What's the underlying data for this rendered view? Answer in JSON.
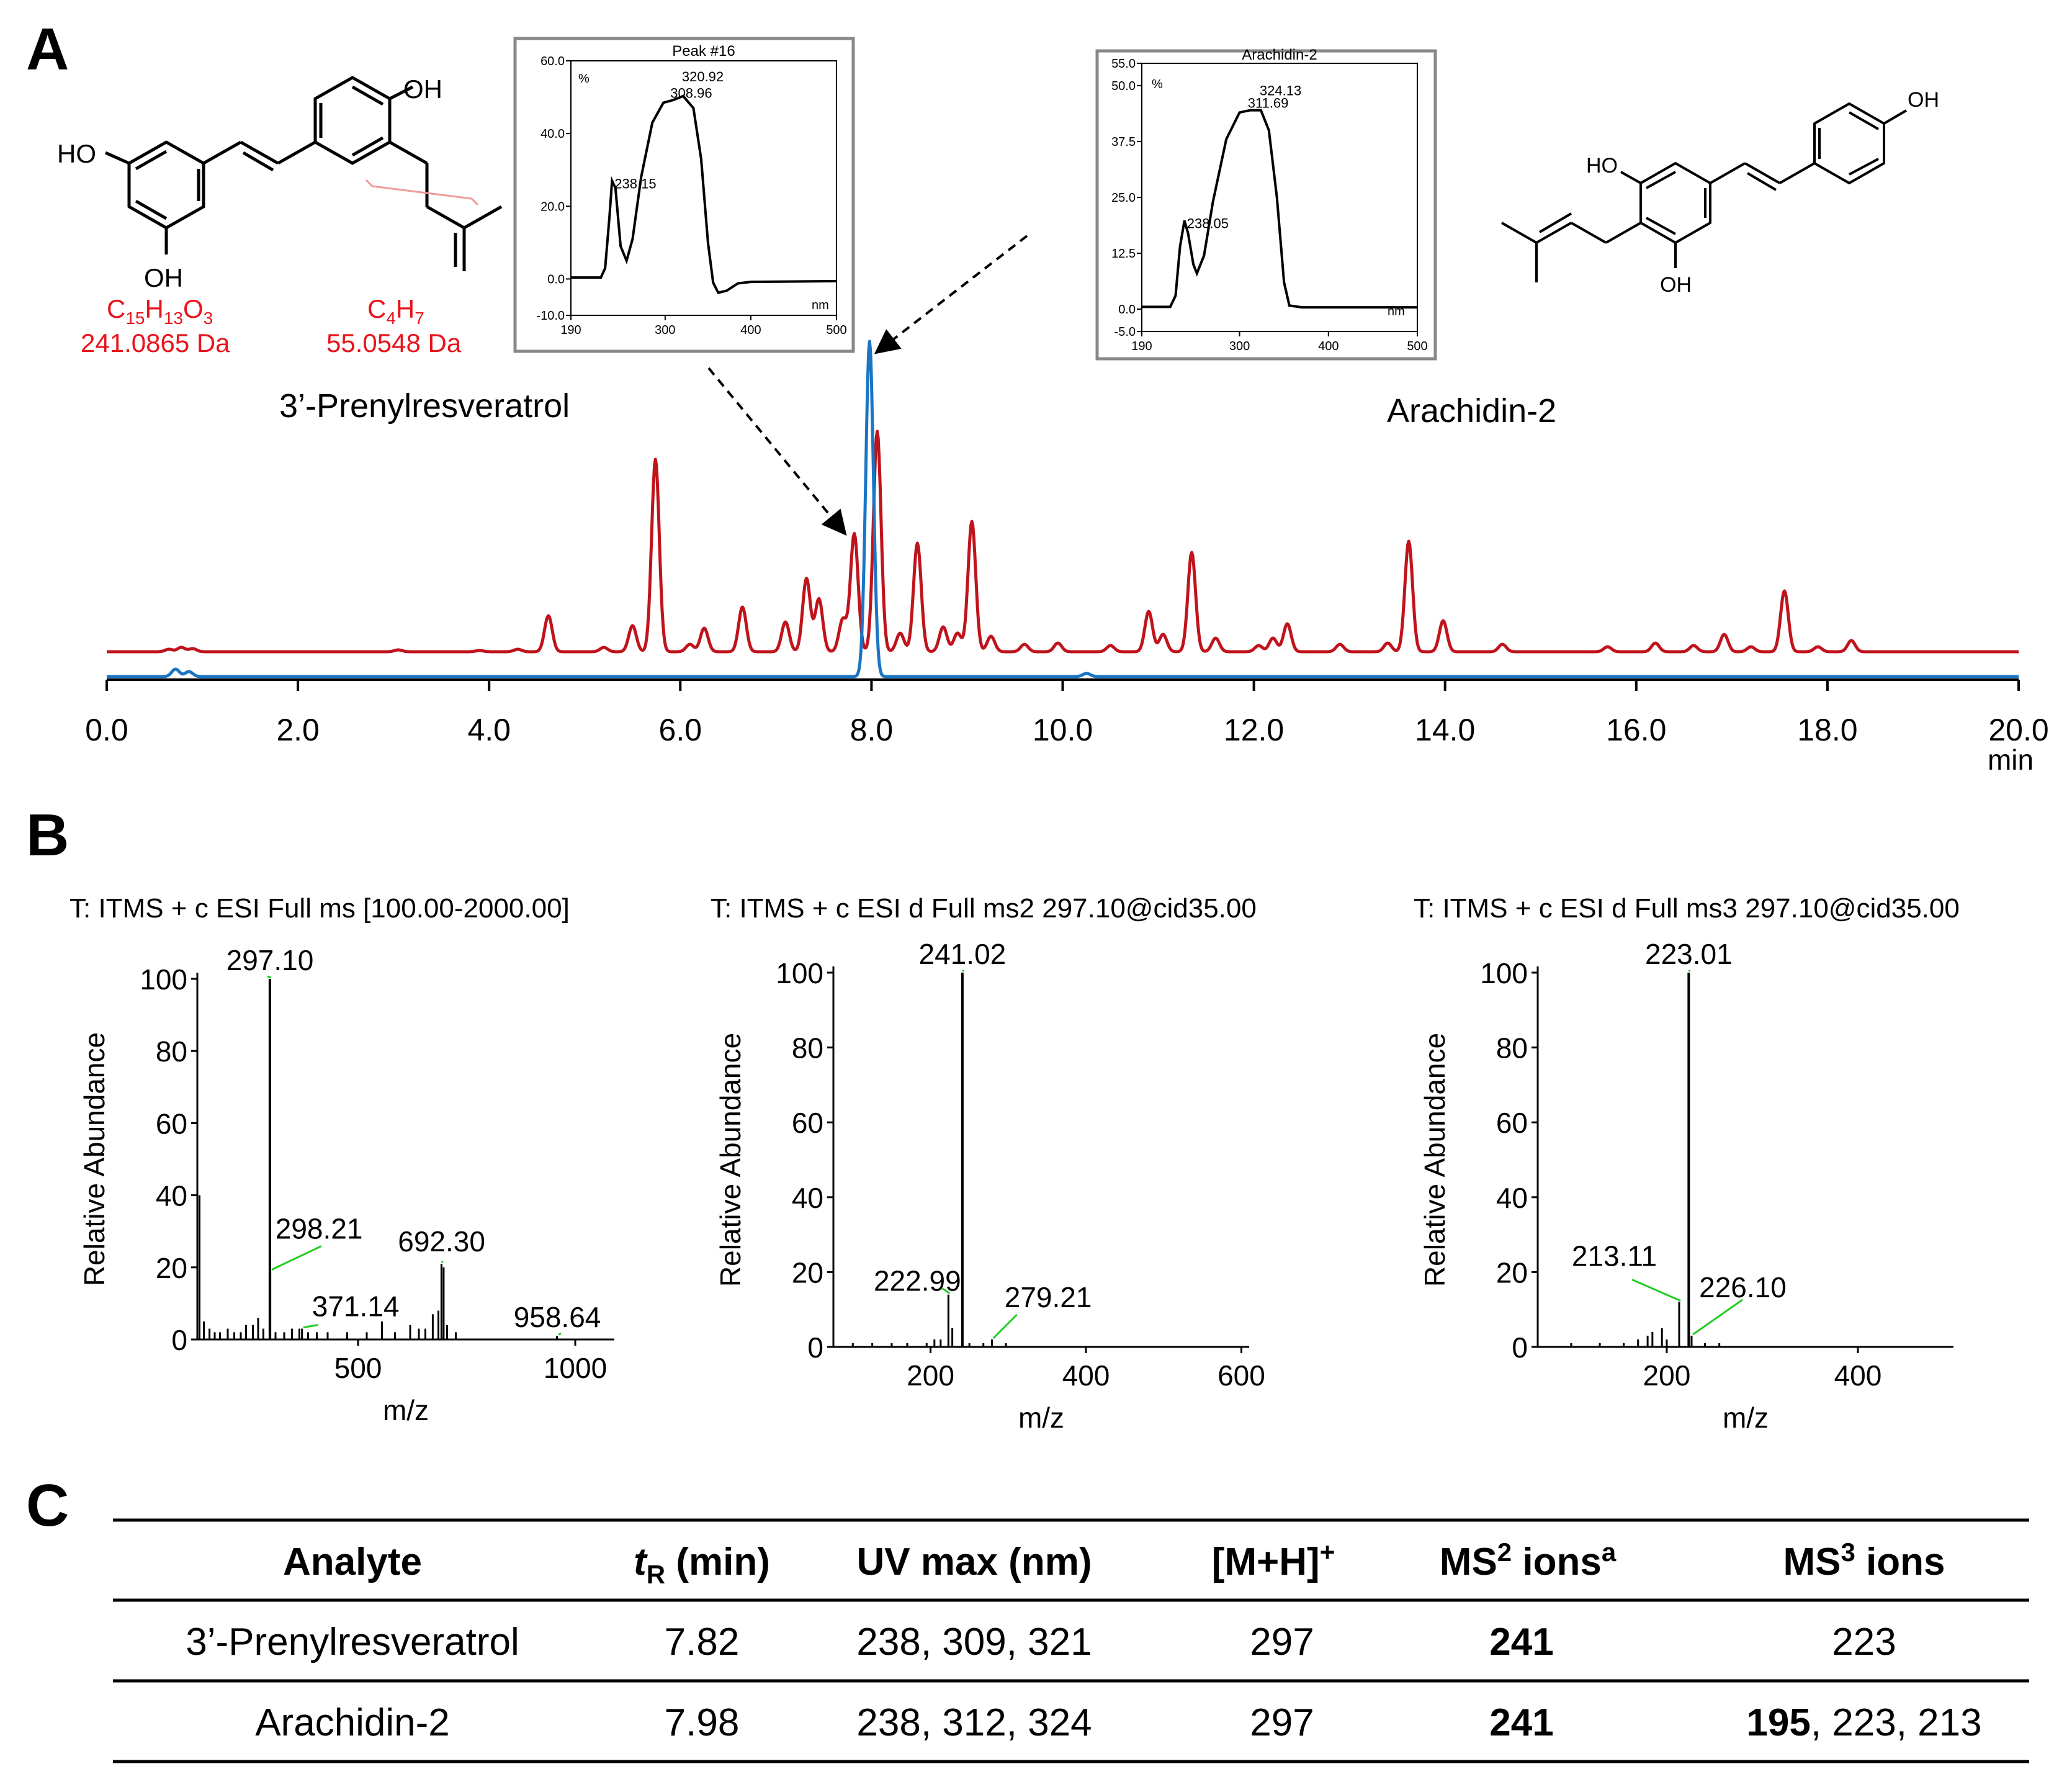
{
  "panels": {
    "a": "A",
    "b": "B",
    "c": "C"
  },
  "structures": {
    "prenylresveratrol": {
      "name": "3’-Prenylresveratrol",
      "oh_top": "OH",
      "oh_left": "HO",
      "oh_bottom": "OH",
      "fragment1": {
        "formula_base": "C",
        "n1": "15",
        "mid1": "H",
        "n2": "13",
        "mid2": "O",
        "n3": "3",
        "mass": "241.0865 Da"
      },
      "fragment2": {
        "formula_base": "C",
        "n1": "4",
        "mid1": "H",
        "n2": "7",
        "mass": "55.0548 Da"
      }
    },
    "arachidin": {
      "name": "Arachidin-2",
      "oh_right": "OH",
      "oh_left": "HO",
      "oh_bottom": "OH"
    }
  },
  "colors": {
    "red": "#c0141c",
    "blue": "#1a75c4",
    "green": "#22cc22",
    "frag_red": "#e8141c",
    "bond_pink": "#f09a9a"
  },
  "chart_data": [
    {
      "type": "line",
      "id": "chromatogram",
      "xlabel": "min",
      "xlim": [
        0.0,
        20.0
      ],
      "ticks": [
        "0.0",
        "2.0",
        "4.0",
        "6.0",
        "8.0",
        "10.0",
        "12.0",
        "14.0",
        "16.0",
        "18.0",
        "20.0"
      ],
      "series": [
        {
          "name": "red-trace",
          "color": "#c0141c",
          "peaks": [
            [
              0.65,
              4
            ],
            [
              0.78,
              7
            ],
            [
              0.9,
              5
            ],
            [
              3.05,
              3
            ],
            [
              3.9,
              2
            ],
            [
              4.3,
              4
            ],
            [
              4.62,
              58
            ],
            [
              5.2,
              7
            ],
            [
              5.5,
              42
            ],
            [
              5.74,
              310
            ],
            [
              6.1,
              12
            ],
            [
              6.25,
              38
            ],
            [
              6.65,
              72
            ],
            [
              7.1,
              48
            ],
            [
              7.32,
              118
            ],
            [
              7.45,
              85
            ],
            [
              7.7,
              52
            ],
            [
              7.82,
              190
            ],
            [
              8.06,
              355
            ],
            [
              8.3,
              30
            ],
            [
              8.48,
              175
            ],
            [
              8.75,
              40
            ],
            [
              8.9,
              30
            ],
            [
              9.05,
              210
            ],
            [
              9.25,
              25
            ],
            [
              9.6,
              12
            ],
            [
              9.95,
              14
            ],
            [
              10.5,
              10
            ],
            [
              10.9,
              65
            ],
            [
              11.05,
              28
            ],
            [
              11.35,
              160
            ],
            [
              11.6,
              22
            ],
            [
              12.05,
              10
            ],
            [
              12.2,
              22
            ],
            [
              12.35,
              45
            ],
            [
              12.9,
              12
            ],
            [
              13.4,
              14
            ],
            [
              13.62,
              178
            ],
            [
              13.98,
              50
            ],
            [
              14.6,
              12
            ],
            [
              15.7,
              8
            ],
            [
              16.2,
              14
            ],
            [
              16.6,
              10
            ],
            [
              16.92,
              28
            ],
            [
              17.2,
              8
            ],
            [
              17.55,
              98
            ],
            [
              17.9,
              8
            ],
            [
              18.25,
              18
            ]
          ]
        },
        {
          "name": "blue-trace",
          "color": "#1a75c4",
          "peaks": [
            [
              0.72,
              12
            ],
            [
              0.86,
              8
            ],
            [
              7.98,
              540
            ],
            [
              10.25,
              5
            ]
          ]
        }
      ]
    },
    {
      "type": "line",
      "id": "uv-peak16",
      "title": "Peak #16",
      "xunit": "nm",
      "yunit": "%",
      "xlim": [
        190,
        500
      ],
      "ylim": [
        -10,
        60
      ],
      "xticks": [
        "190",
        "300",
        "400",
        "500"
      ],
      "yticks": [
        "60.0",
        "40.0",
        "20.0",
        "0.0",
        "-10.0"
      ],
      "maxima": [
        {
          "x": 238,
          "label": "238.15"
        },
        {
          "x": 309,
          "label": "308.96"
        },
        {
          "x": 321,
          "label": "320.92"
        }
      ],
      "points": [
        [
          190,
          0.4
        ],
        [
          225,
          0.4
        ],
        [
          230,
          3
        ],
        [
          235,
          17
        ],
        [
          238,
          27
        ],
        [
          242,
          25
        ],
        [
          248,
          9
        ],
        [
          255,
          5
        ],
        [
          262,
          11
        ],
        [
          272,
          28
        ],
        [
          285,
          43
        ],
        [
          298,
          48.5
        ],
        [
          309,
          49.2
        ],
        [
          321,
          50.3
        ],
        [
          333,
          47
        ],
        [
          342,
          33
        ],
        [
          350,
          10
        ],
        [
          356,
          -1
        ],
        [
          362,
          -3.8
        ],
        [
          372,
          -3.2
        ],
        [
          385,
          -1.2
        ],
        [
          400,
          -0.8
        ],
        [
          500,
          -0.6
        ]
      ]
    },
    {
      "type": "line",
      "id": "uv-arachidin",
      "title": "Arachidin-2",
      "xunit": "nm",
      "yunit": "%",
      "xlim": [
        190,
        500
      ],
      "ylim": [
        -5,
        55
      ],
      "xticks": [
        "190",
        "300",
        "400",
        "500"
      ],
      "yticks": [
        "55.0",
        "50.0",
        "37.5",
        "25.0",
        "12.5",
        "0.0",
        "-5.0"
      ],
      "maxima": [
        {
          "x": 238,
          "label": "238.05"
        },
        {
          "x": 312,
          "label": "311.69"
        },
        {
          "x": 324,
          "label": "324.13"
        }
      ],
      "points": [
        [
          190,
          0.5
        ],
        [
          222,
          0.5
        ],
        [
          228,
          3
        ],
        [
          233,
          14
        ],
        [
          238,
          19.8
        ],
        [
          242,
          17
        ],
        [
          248,
          10
        ],
        [
          252,
          8
        ],
        [
          260,
          12
        ],
        [
          270,
          24
        ],
        [
          285,
          38
        ],
        [
          300,
          44
        ],
        [
          312,
          44.5
        ],
        [
          324,
          44.5
        ],
        [
          333,
          40
        ],
        [
          342,
          25
        ],
        [
          350,
          6
        ],
        [
          356,
          0.8
        ],
        [
          370,
          0.4
        ],
        [
          500,
          0.4
        ]
      ]
    },
    {
      "type": "bar",
      "id": "ms1",
      "title": "T: ITMS + c ESI Full ms [100.00-2000.00]",
      "xlabel": "m/z",
      "ylabel": "Relative Abundance",
      "xlim": [
        130,
        1090
      ],
      "ylim": [
        0,
        100
      ],
      "xticks": [
        500,
        1000
      ],
      "yticks": [
        0,
        20,
        40,
        60,
        80,
        100
      ],
      "xtick_labels": [
        "500",
        "1000"
      ],
      "ytick_labels": [
        "0",
        "20",
        "40",
        "60",
        "80",
        "100"
      ],
      "labeled_peaks": [
        {
          "mz": 297.1,
          "label": "297.10"
        },
        {
          "mz": 298.21,
          "label": "298.21"
        },
        {
          "mz": 371.14,
          "label": "371.14"
        },
        {
          "mz": 692.3,
          "label": "692.30"
        },
        {
          "mz": 958.64,
          "label": "958.64"
        }
      ],
      "peaks": [
        [
          135,
          40
        ],
        [
          145,
          5
        ],
        [
          158,
          3
        ],
        [
          170,
          2
        ],
        [
          182,
          2
        ],
        [
          200,
          3
        ],
        [
          215,
          2
        ],
        [
          230,
          2
        ],
        [
          242,
          4
        ],
        [
          258,
          4
        ],
        [
          270,
          6
        ],
        [
          282,
          3
        ],
        [
          297,
          100
        ],
        [
          298,
          19
        ],
        [
          310,
          2
        ],
        [
          330,
          2
        ],
        [
          348,
          3
        ],
        [
          365,
          3
        ],
        [
          371,
          3
        ],
        [
          385,
          2
        ],
        [
          405,
          2
        ],
        [
          430,
          2
        ],
        [
          475,
          2
        ],
        [
          520,
          2
        ],
        [
          555,
          5
        ],
        [
          585,
          2
        ],
        [
          620,
          4
        ],
        [
          640,
          3
        ],
        [
          655,
          3
        ],
        [
          672,
          7
        ],
        [
          685,
          8
        ],
        [
          692,
          21
        ],
        [
          697,
          20
        ],
        [
          705,
          4
        ],
        [
          725,
          2
        ],
        [
          958,
          1
        ]
      ]
    },
    {
      "type": "bar",
      "id": "ms2",
      "title": "T: ITMS + c ESI d Full ms2 297.10@cid35.00",
      "xlabel": "m/z",
      "ylabel": "Relative Abundance",
      "xlim": [
        75,
        610
      ],
      "ylim": [
        0,
        100
      ],
      "xticks": [
        200,
        400,
        600
      ],
      "yticks": [
        0,
        20,
        40,
        60,
        80,
        100
      ],
      "xtick_labels": [
        "200",
        "400",
        "600"
      ],
      "ytick_labels": [
        "0",
        "20",
        "40",
        "60",
        "80",
        "100"
      ],
      "labeled_peaks": [
        {
          "mz": 222.99,
          "label": "222.99"
        },
        {
          "mz": 241.02,
          "label": "241.02"
        },
        {
          "mz": 279.21,
          "label": "279.21"
        }
      ],
      "peaks": [
        [
          100,
          1
        ],
        [
          125,
          1
        ],
        [
          150,
          1
        ],
        [
          170,
          1
        ],
        [
          195,
          1
        ],
        [
          205,
          2
        ],
        [
          213,
          2
        ],
        [
          223,
          14
        ],
        [
          228,
          5
        ],
        [
          241,
          100
        ],
        [
          250,
          1
        ],
        [
          268,
          1
        ],
        [
          279,
          2
        ],
        [
          297,
          1
        ]
      ]
    },
    {
      "type": "bar",
      "id": "ms3",
      "title": "T: ITMS + c ESI d Full ms3 297.10@cid35.00",
      "xlabel": "m/z",
      "ylabel": "Relative Abundance",
      "xlim": [
        65,
        500
      ],
      "ylim": [
        0,
        100
      ],
      "xticks": [
        200,
        400
      ],
      "yticks": [
        0,
        20,
        40,
        60,
        80,
        100
      ],
      "xtick_labels": [
        "200",
        "400"
      ],
      "ytick_labels": [
        "0",
        "20",
        "40",
        "60",
        "80",
        "100"
      ],
      "labeled_peaks": [
        {
          "mz": 213.11,
          "label": "213.11"
        },
        {
          "mz": 223.01,
          "label": "223.01"
        },
        {
          "mz": 226.1,
          "label": "226.10"
        }
      ],
      "peaks": [
        [
          100,
          1
        ],
        [
          130,
          1
        ],
        [
          155,
          1
        ],
        [
          170,
          2
        ],
        [
          180,
          3
        ],
        [
          185,
          4
        ],
        [
          195,
          5
        ],
        [
          200,
          2
        ],
        [
          213,
          12
        ],
        [
          223,
          100
        ],
        [
          226,
          3
        ],
        [
          240,
          1
        ],
        [
          255,
          1
        ]
      ]
    }
  ],
  "table": {
    "headers": {
      "analyte": "Analyte",
      "tr_t": "t",
      "tr_sub": "R",
      "tr_rest": " (min)",
      "uv": "UV max (nm)",
      "mh": "[M+H]",
      "mh_sup": "+",
      "ms2": "MS",
      "ms2_sup": "2",
      "ms2_rest": " ions",
      "ms2_note": "a",
      "ms3": "MS",
      "ms3_sup": "3",
      "ms3_rest": " ions"
    },
    "rows": [
      {
        "analyte": "3’-Prenylresveratrol",
        "tr": "7.82",
        "uv": "238, 309, 321",
        "mh": "297",
        "ms2": "241",
        "ms3_bold": "",
        "ms3": "223"
      },
      {
        "analyte": "Arachidin-2",
        "tr": "7.98",
        "uv": "238, 312, 324",
        "mh": "297",
        "ms2": "241",
        "ms3_bold": "195",
        "ms3": ", 223, 213"
      }
    ]
  }
}
